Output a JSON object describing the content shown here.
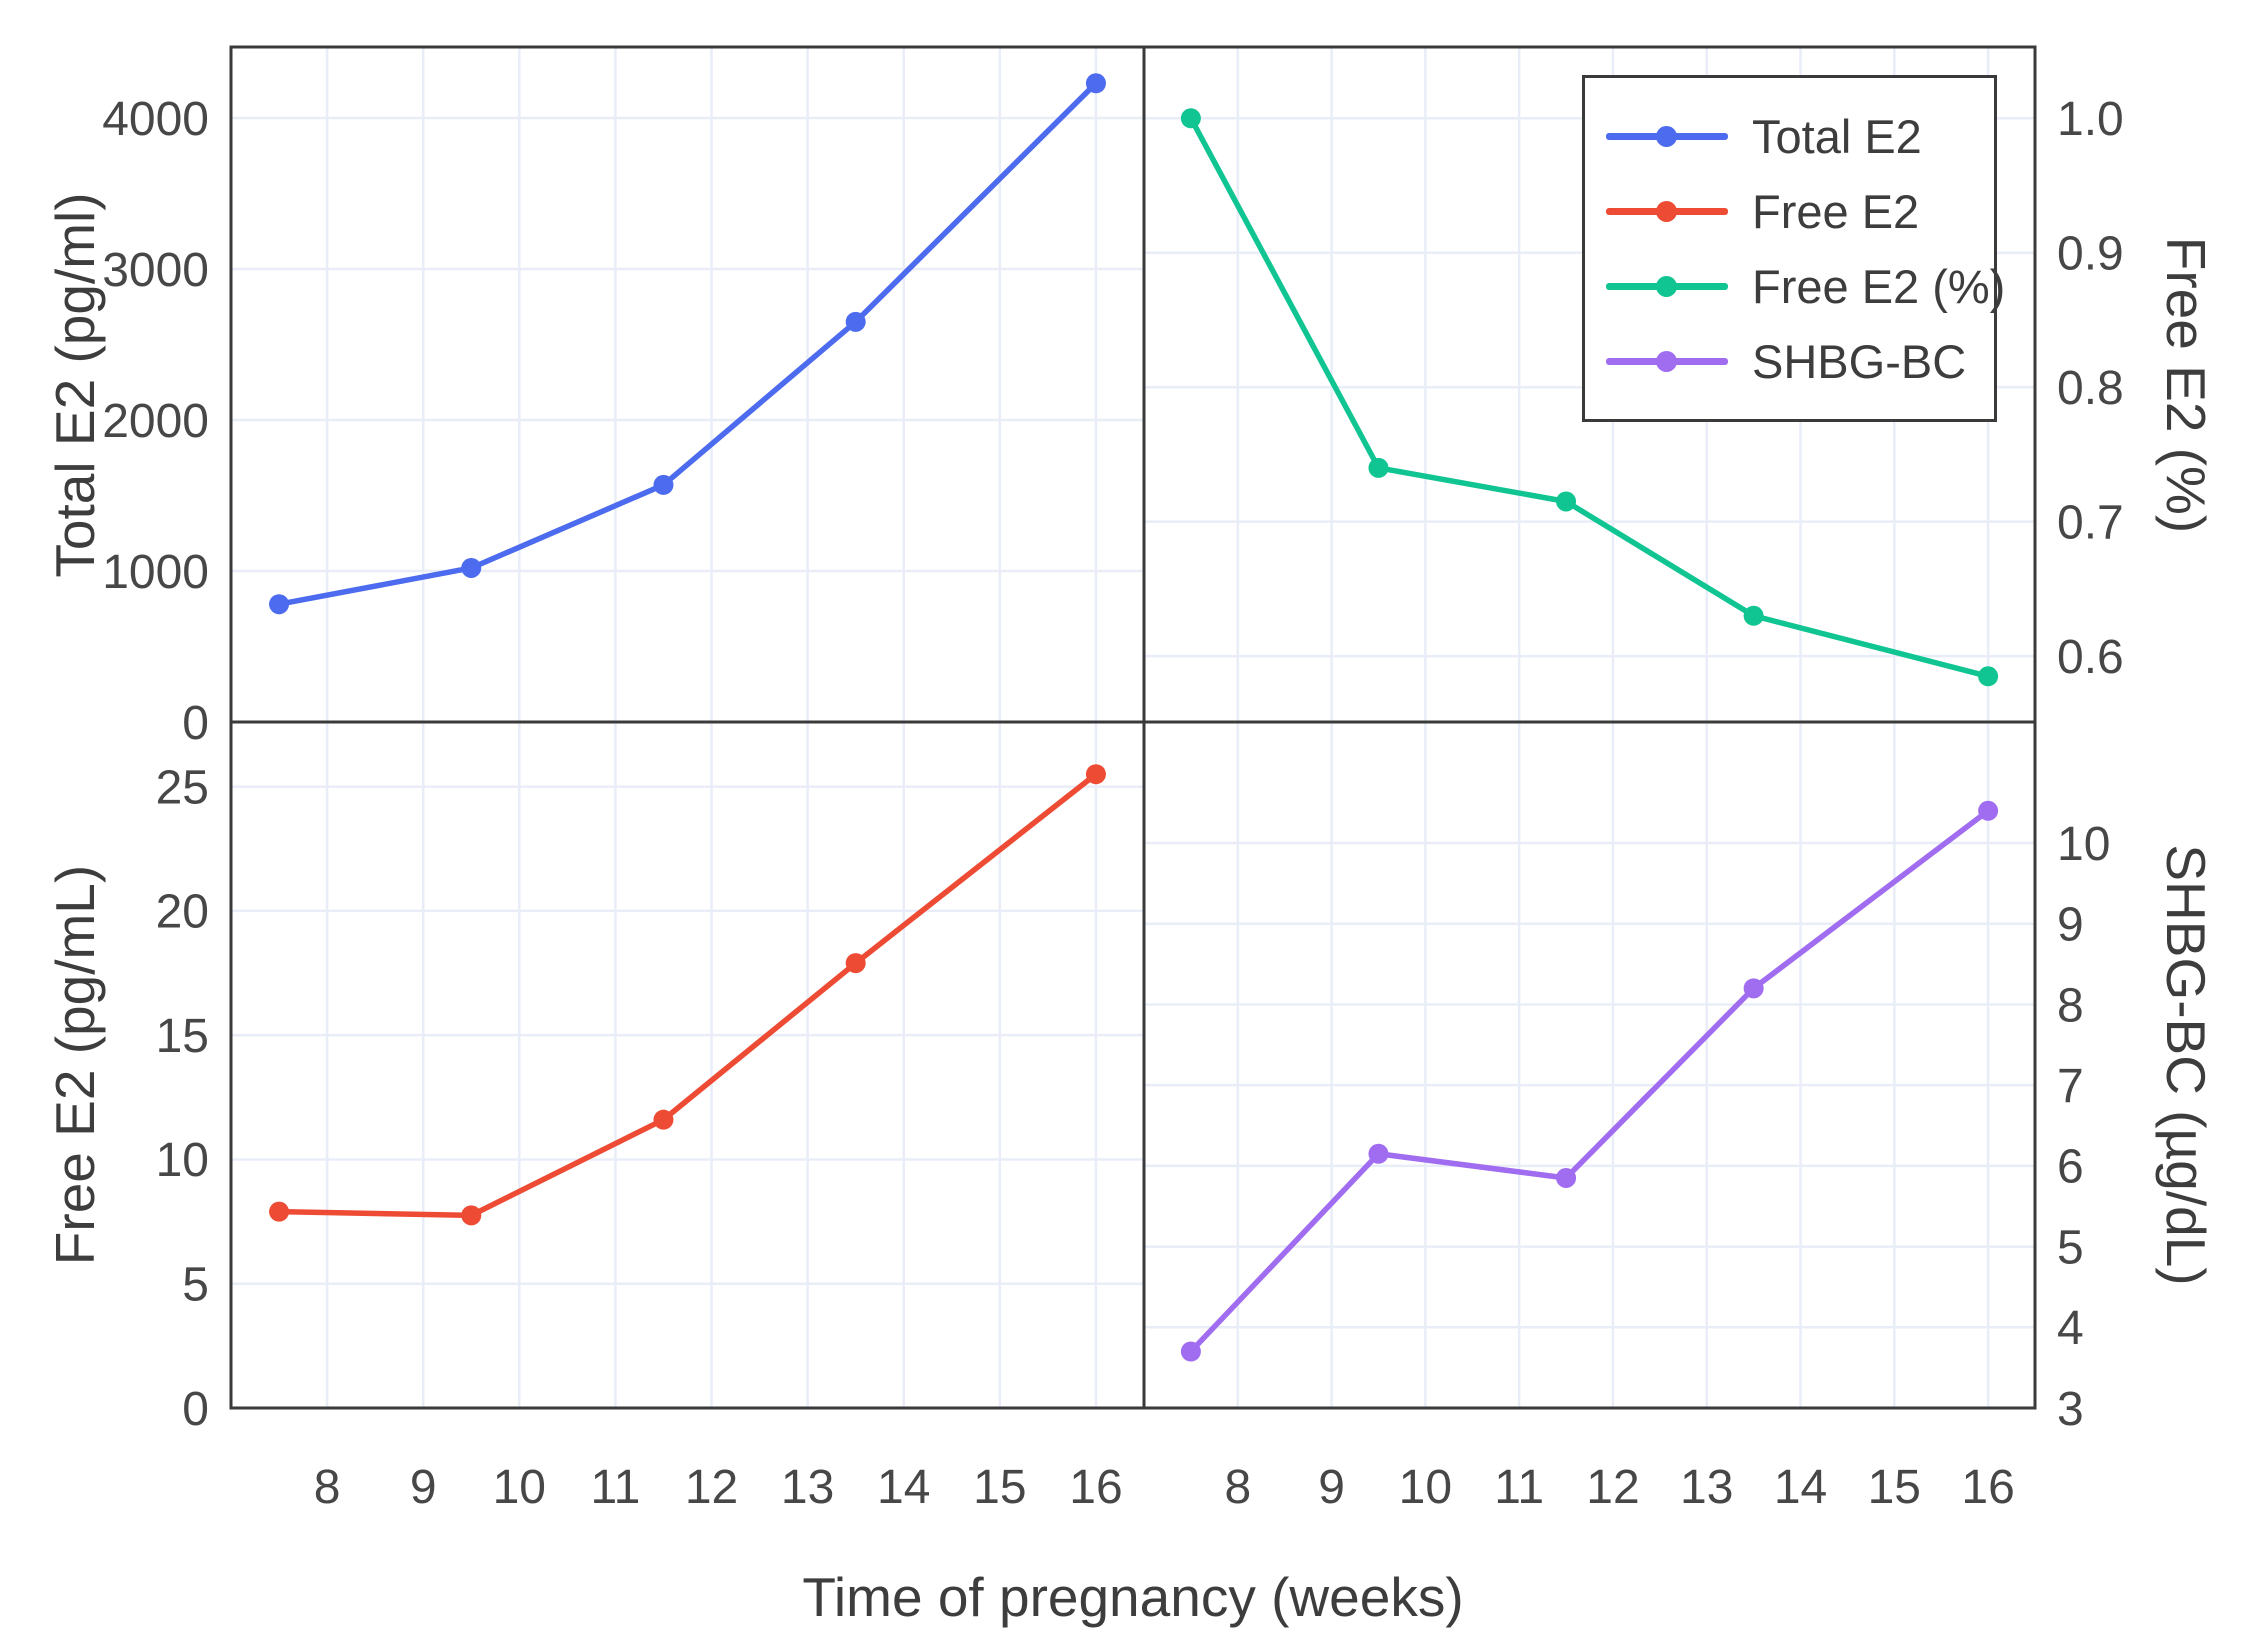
{
  "figure": {
    "xlabel": "Time of pregnancy (weeks)",
    "background": "#ffffff",
    "axis_color": "#3a3a3a",
    "grid_color": "#e9edf8",
    "text_color": "#3d3d3d",
    "tick_color": "#474747"
  },
  "legend": {
    "position": "top-right-panel",
    "entries": [
      {
        "label": "Total E2",
        "color": "#4d6bee"
      },
      {
        "label": "Free E2",
        "color": "#ee4b35"
      },
      {
        "label": "Free E2 (%)",
        "color": "#10c591"
      },
      {
        "label": "SHBG-BC",
        "color": "#a06cf0"
      }
    ]
  },
  "chart_data": [
    {
      "type": "line",
      "panel": "top-left",
      "series_name": "Total E2",
      "ylabel": "Total E2 (pg/ml)",
      "ylabel_side": "left",
      "color": "#4d6bee",
      "x": [
        7.5,
        9.5,
        11.5,
        13.5,
        16
      ],
      "values": [
        780,
        1020,
        1570,
        2650,
        4230
      ],
      "xlim": [
        7.0,
        16.5
      ],
      "ylim": [
        0,
        4470
      ],
      "yticks": [
        0,
        1000,
        2000,
        3000,
        4000
      ],
      "ytick_labels": [
        "0",
        "1000",
        "2000",
        "3000",
        "4000"
      ],
      "xticks": [
        8,
        9,
        10,
        11,
        12,
        13,
        14,
        15,
        16
      ],
      "grid": true
    },
    {
      "type": "line",
      "panel": "top-right",
      "series_name": "Free E2 (%)",
      "ylabel": "Free E2 (%)",
      "ylabel_side": "right",
      "color": "#10c591",
      "x": [
        7.5,
        9.5,
        11.5,
        13.5,
        16
      ],
      "values": [
        1.0,
        0.74,
        0.715,
        0.63,
        0.585
      ],
      "xlim": [
        7.0,
        16.5
      ],
      "ylim": [
        0.551,
        1.053
      ],
      "yticks": [
        0.6,
        0.7,
        0.8,
        0.9,
        1.0
      ],
      "ytick_labels": [
        "0.6",
        "0.7",
        "0.8",
        "0.9",
        "1.0"
      ],
      "xticks": [
        8,
        9,
        10,
        11,
        12,
        13,
        14,
        15,
        16
      ],
      "grid": true
    },
    {
      "type": "line",
      "panel": "bottom-left",
      "series_name": "Free E2",
      "ylabel": "Free E2 (pg/mL)",
      "ylabel_side": "left",
      "color": "#ee4b35",
      "x": [
        7.5,
        9.5,
        11.5,
        13.5,
        16
      ],
      "values": [
        7.9,
        7.75,
        11.6,
        17.9,
        25.5
      ],
      "xlim": [
        7.0,
        16.5
      ],
      "ylim": [
        0,
        27.6
      ],
      "yticks": [
        0,
        5,
        10,
        15,
        20,
        25
      ],
      "ytick_labels": [
        "0",
        "5",
        "10",
        "15",
        "20",
        "25"
      ],
      "xticks": [
        8,
        9,
        10,
        11,
        12,
        13,
        14,
        15,
        16
      ],
      "grid": true
    },
    {
      "type": "line",
      "panel": "bottom-right",
      "series_name": "SHBG-BC",
      "ylabel": "SHBG-BC (µg/dL)",
      "ylabel_side": "right",
      "color": "#a06cf0",
      "x": [
        7.5,
        9.5,
        11.5,
        13.5,
        16
      ],
      "values": [
        3.7,
        6.15,
        5.85,
        8.2,
        10.4
      ],
      "xlim": [
        7.0,
        16.5
      ],
      "ylim": [
        3,
        11.5
      ],
      "yticks": [
        3,
        4,
        5,
        6,
        7,
        8,
        9,
        10
      ],
      "ytick_labels": [
        "3",
        "4",
        "5",
        "6",
        "7",
        "8",
        "9",
        "10"
      ],
      "xticks": [
        8,
        9,
        10,
        11,
        12,
        13,
        14,
        15,
        16
      ],
      "grid": true
    }
  ]
}
